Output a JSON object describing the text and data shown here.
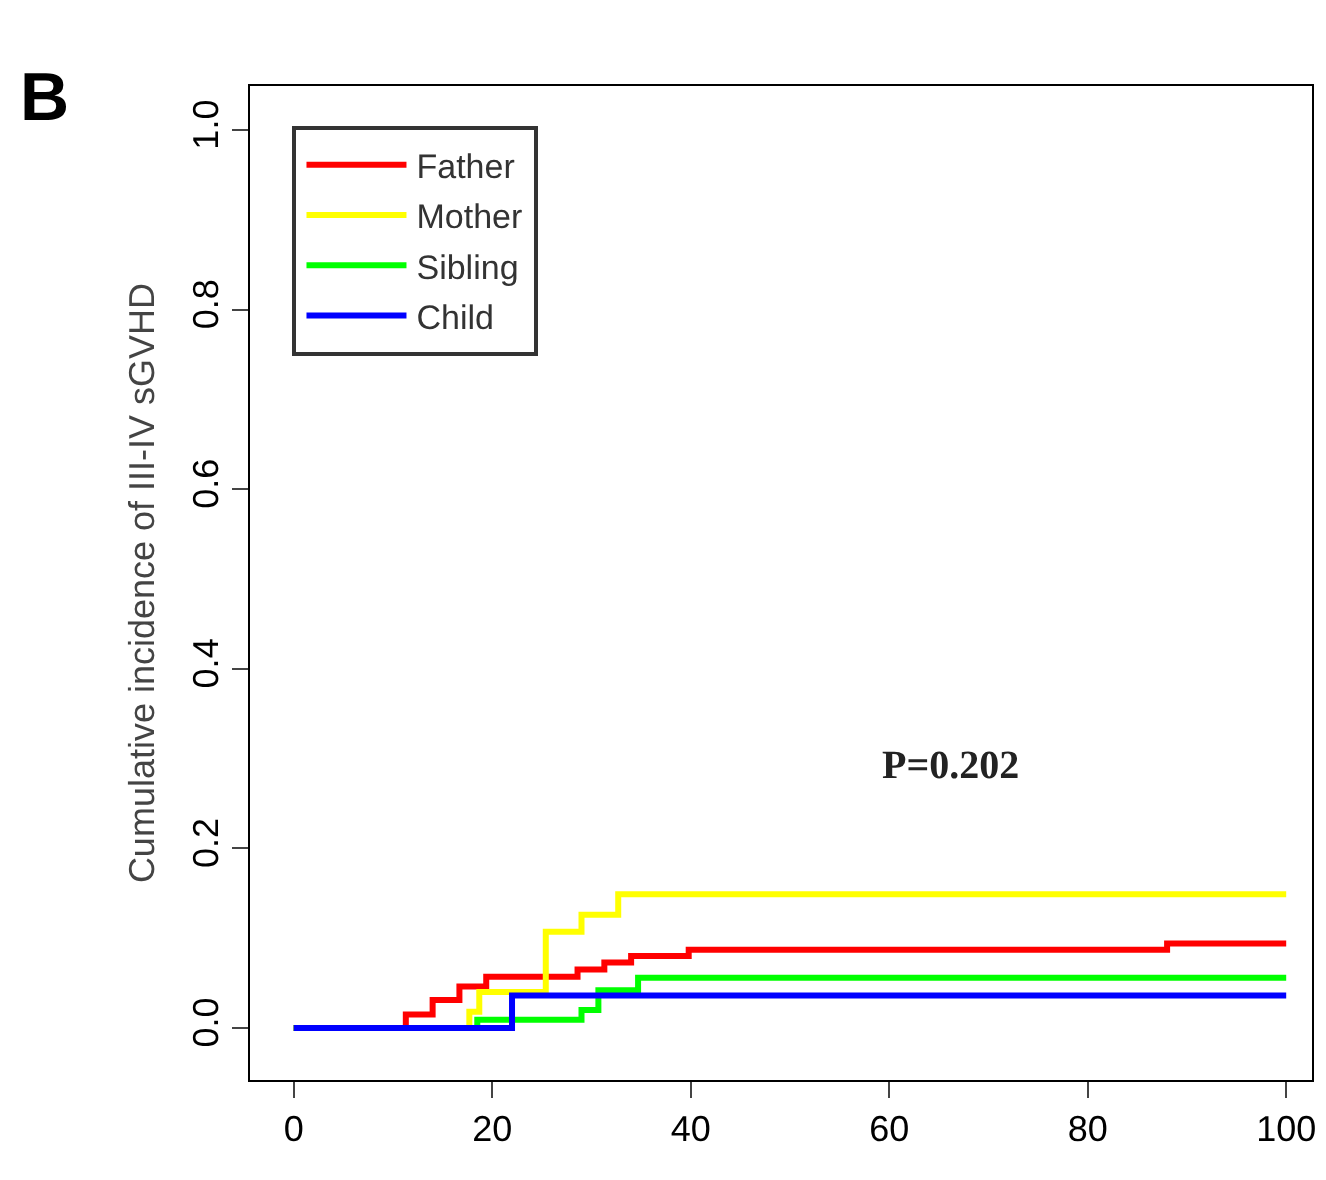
{
  "chart_data": {
    "type": "step",
    "ylabel": "Cumulative incidence of III-IV sGVHD",
    "annotations": [
      "P=0.202",
      "B"
    ],
    "xlim": [
      -4.4,
      102.6
    ],
    "ylim": [
      -0.058,
      1.049
    ],
    "xticks": [
      0,
      20,
      40,
      60,
      80,
      100
    ],
    "yticks": [
      {
        "value": 0,
        "label": "0.0"
      },
      0.2,
      0.4,
      0.6,
      0.8,
      {
        "value": 1,
        "label": "1.0"
      }
    ],
    "legend": "top left",
    "marker": "none",
    "line_style": "solid",
    "series": [
      {
        "name": "Father",
        "color": "#ff0000",
        "x": [
          0,
          9,
          11.3,
          14,
          16.7,
          19.4,
          26,
          28.6,
          31.3,
          34,
          39.8,
          88,
          100
        ],
        "values": [
          0,
          0,
          0.015,
          0.031,
          0.046,
          0.057,
          0.057,
          0.065,
          0.073,
          0.08,
          0.087,
          0.094,
          0.094
        ]
      },
      {
        "name": "Mother",
        "color": "#ffff00",
        "x": [
          0,
          17.7,
          18.7,
          25.4,
          29,
          32.7,
          100
        ],
        "values": [
          0,
          0.018,
          0.04,
          0.107,
          0.126,
          0.149,
          0.149
        ]
      },
      {
        "name": "Sibling",
        "color": "#00ff00",
        "x": [
          0,
          18.5,
          29,
          30.7,
          34.7,
          100
        ],
        "values": [
          0,
          0.009,
          0.02,
          0.042,
          0.056,
          0.056
        ]
      },
      {
        "name": "Child",
        "color": "#0000ff",
        "x": [
          0,
          22,
          100
        ],
        "values": [
          0,
          0.036,
          0.036
        ]
      }
    ]
  }
}
